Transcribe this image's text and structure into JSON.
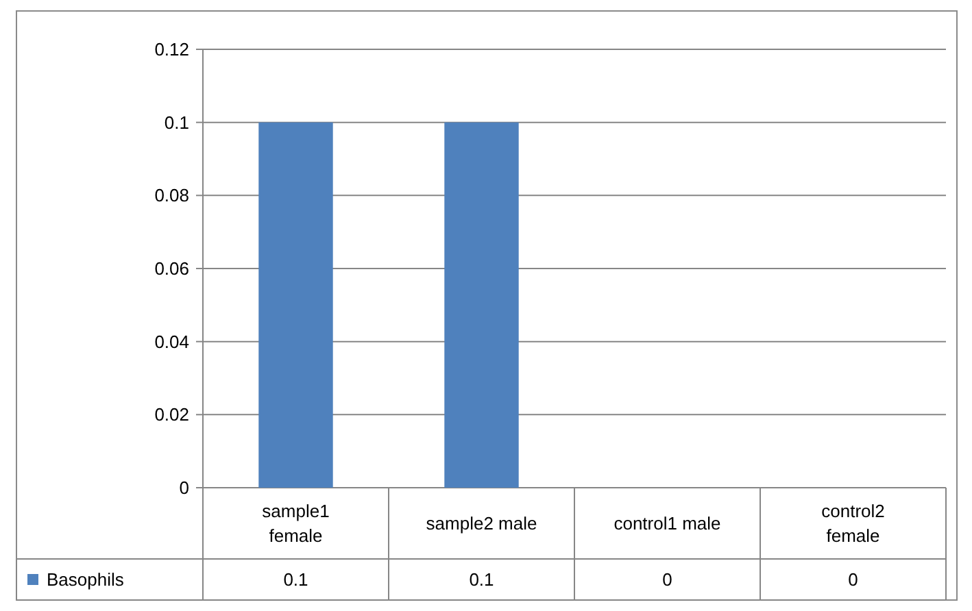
{
  "chart_data": {
    "type": "bar",
    "categories": [
      "sample1 female",
      "sample2 male",
      "control1 male",
      "control2 female"
    ],
    "series": [
      {
        "name": "Basophils",
        "color": "#4f81bd",
        "values": [
          0.1,
          0.1,
          0,
          0
        ]
      }
    ],
    "ylim": [
      0,
      0.12
    ],
    "yticks": [
      0,
      0.02,
      0.04,
      0.06,
      0.08,
      0.1,
      0.12
    ],
    "grid": "y",
    "legend": "bottom left",
    "data_labels": true
  }
}
